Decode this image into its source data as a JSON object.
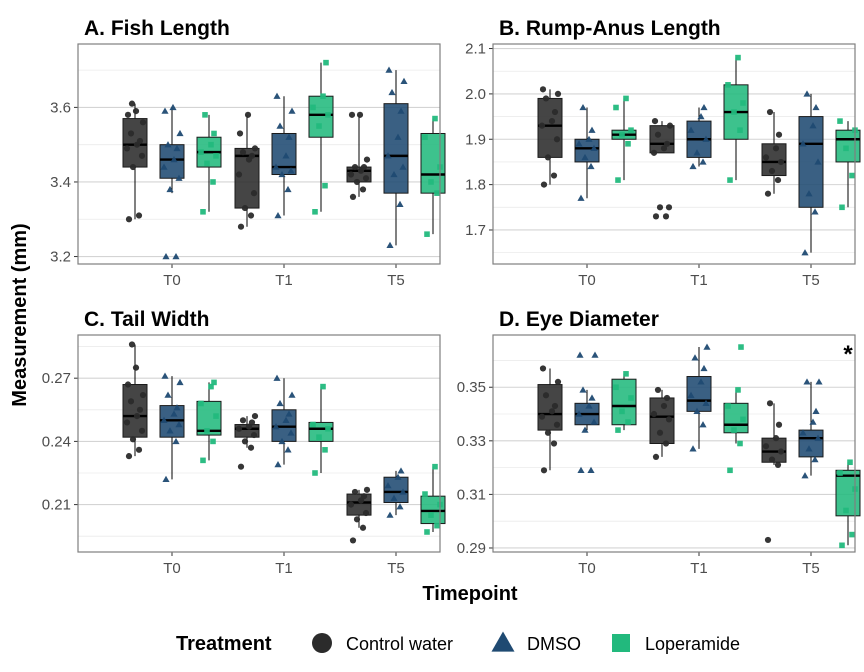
{
  "figure": {
    "ylabel": "Measurement (mm)",
    "xlabel": "Timepoint",
    "legend": {
      "title": "Treatment",
      "placement": "bottom",
      "items": [
        {
          "label": "Control water",
          "shape": "circle",
          "color": "#2b2b2b"
        },
        {
          "label": "DMSO",
          "shape": "triangle",
          "color": "#1f4a72"
        },
        {
          "label": "Loperamide",
          "shape": "square",
          "color": "#22b97d"
        }
      ]
    },
    "colors": {
      "Control water": "#2b2b2b",
      "DMSO": "#1f4a72",
      "Loperamide": "#22b97d",
      "panel_border": "#7f7f7f",
      "grid": "#d4d4d4"
    }
  },
  "chart_data": [
    {
      "type": "box",
      "title": "A. Fish Length",
      "categories": [
        "T0",
        "T1",
        "T5"
      ],
      "ylim": [
        3.18,
        3.77
      ],
      "yticks": [
        3.2,
        3.4,
        3.6
      ],
      "ytick_labels": [
        "3.2",
        "3.4",
        "3.6"
      ],
      "grid": true,
      "annotations": [],
      "series": [
        {
          "name": "Control water",
          "boxes": [
            {
              "min": 3.3,
              "q1": 3.44,
              "median": 3.5,
              "q3": 3.57,
              "max": 3.61,
              "points": [
                3.3,
                3.31,
                3.44,
                3.47,
                3.49,
                3.5,
                3.51,
                3.53,
                3.56,
                3.58,
                3.59,
                3.61
              ]
            },
            {
              "min": 3.28,
              "q1": 3.33,
              "median": 3.47,
              "q3": 3.49,
              "max": 3.58,
              "points": [
                3.28,
                3.31,
                3.33,
                3.37,
                3.42,
                3.46,
                3.47,
                3.48,
                3.49,
                3.53,
                3.58
              ]
            },
            {
              "min": 3.36,
              "q1": 3.4,
              "median": 3.43,
              "q3": 3.44,
              "max": 3.58,
              "points": [
                3.36,
                3.38,
                3.4,
                3.41,
                3.42,
                3.43,
                3.44,
                3.44,
                3.46,
                3.58,
                3.58
              ]
            }
          ]
        },
        {
          "name": "DMSO",
          "boxes": [
            {
              "min": 3.37,
              "q1": 3.41,
              "median": 3.46,
              "q3": 3.5,
              "max": 3.6,
              "points": [
                3.2,
                3.2,
                3.38,
                3.41,
                3.44,
                3.46,
                3.49,
                3.5,
                3.53,
                3.59,
                3.6
              ]
            },
            {
              "min": 3.31,
              "q1": 3.42,
              "median": 3.44,
              "q3": 3.53,
              "max": 3.63,
              "points": [
                3.31,
                3.38,
                3.42,
                3.43,
                3.44,
                3.47,
                3.52,
                3.55,
                3.59,
                3.63
              ]
            },
            {
              "min": 3.23,
              "q1": 3.37,
              "median": 3.47,
              "q3": 3.61,
              "max": 3.7,
              "points": [
                3.23,
                3.34,
                3.42,
                3.44,
                3.47,
                3.52,
                3.59,
                3.64,
                3.67,
                3.7
              ]
            }
          ]
        },
        {
          "name": "Loperamide",
          "boxes": [
            {
              "min": 3.32,
              "q1": 3.44,
              "median": 3.48,
              "q3": 3.52,
              "max": 3.58,
              "points": [
                3.32,
                3.4,
                3.45,
                3.47,
                3.48,
                3.5,
                3.53,
                3.58
              ]
            },
            {
              "min": 3.32,
              "q1": 3.52,
              "median": 3.58,
              "q3": 3.63,
              "max": 3.72,
              "points": [
                3.32,
                3.39,
                3.55,
                3.58,
                3.6,
                3.63,
                3.72
              ]
            },
            {
              "min": 3.26,
              "q1": 3.37,
              "median": 3.42,
              "q3": 3.53,
              "max": 3.57,
              "points": [
                3.26,
                3.37,
                3.4,
                3.44,
                3.52,
                3.57
              ]
            }
          ]
        }
      ]
    },
    {
      "type": "box",
      "title": "B. Rump-Anus Length",
      "categories": [
        "T0",
        "T1",
        "T5"
      ],
      "ylim": [
        1.625,
        2.11
      ],
      "yticks": [
        1.7,
        1.8,
        1.9,
        2.0,
        2.1
      ],
      "ytick_labels": [
        "1.7",
        "1.8",
        "1.9",
        "2.0",
        "2.1"
      ],
      "grid": true,
      "annotations": [],
      "series": [
        {
          "name": "Control water",
          "boxes": [
            {
              "min": 1.8,
              "q1": 1.86,
              "median": 1.93,
              "q3": 1.99,
              "max": 2.01,
              "points": [
                1.8,
                1.82,
                1.86,
                1.9,
                1.93,
                1.94,
                1.96,
                1.99,
                2.0,
                2.01
              ]
            },
            {
              "min": 1.87,
              "q1": 1.87,
              "median": 1.89,
              "q3": 1.93,
              "max": 1.94,
              "points": [
                1.73,
                1.73,
                1.75,
                1.75,
                1.87,
                1.88,
                1.89,
                1.91,
                1.93,
                1.94
              ]
            },
            {
              "min": 1.78,
              "q1": 1.82,
              "median": 1.85,
              "q3": 1.89,
              "max": 1.96,
              "points": [
                1.78,
                1.81,
                1.83,
                1.85,
                1.86,
                1.88,
                1.91,
                1.96
              ]
            }
          ]
        },
        {
          "name": "DMSO",
          "boxes": [
            {
              "min": 1.77,
              "q1": 1.85,
              "median": 1.88,
              "q3": 1.9,
              "max": 1.97,
              "points": [
                1.77,
                1.84,
                1.86,
                1.88,
                1.89,
                1.9,
                1.92,
                1.97
              ]
            },
            {
              "min": 1.84,
              "q1": 1.86,
              "median": 1.9,
              "q3": 1.94,
              "max": 1.97,
              "points": [
                1.84,
                1.85,
                1.87,
                1.9,
                1.92,
                1.95,
                1.97
              ]
            },
            {
              "min": 1.65,
              "q1": 1.75,
              "median": 1.89,
              "q3": 1.95,
              "max": 2.0,
              "points": [
                1.65,
                1.74,
                1.78,
                1.85,
                1.89,
                1.93,
                1.97,
                2.0
              ]
            }
          ]
        },
        {
          "name": "Loperamide",
          "boxes": [
            {
              "min": 1.81,
              "q1": 1.9,
              "median": 1.91,
              "q3": 1.92,
              "max": 1.99,
              "points": [
                1.81,
                1.89,
                1.91,
                1.92,
                1.97,
                1.99
              ]
            },
            {
              "min": 1.81,
              "q1": 1.9,
              "median": 1.96,
              "q3": 2.02,
              "max": 2.08,
              "points": [
                1.81,
                1.92,
                1.96,
                1.98,
                2.02,
                2.08
              ]
            },
            {
              "min": 1.75,
              "q1": 1.85,
              "median": 1.9,
              "q3": 1.92,
              "max": 1.94,
              "points": [
                1.75,
                1.82,
                1.88,
                1.92,
                1.94
              ]
            }
          ]
        }
      ]
    },
    {
      "type": "box",
      "title": "C. Tail Width",
      "categories": [
        "T0",
        "T1",
        "T5"
      ],
      "ylim": [
        0.1875,
        0.2905
      ],
      "yticks": [
        0.21,
        0.24,
        0.27
      ],
      "ytick_labels": [
        "0.21",
        "0.24",
        "0.27"
      ],
      "grid": true,
      "annotations": [],
      "series": [
        {
          "name": "Control water",
          "boxes": [
            {
              "min": 0.233,
              "q1": 0.242,
              "median": 0.252,
              "q3": 0.267,
              "max": 0.286,
              "points": [
                0.233,
                0.236,
                0.241,
                0.245,
                0.249,
                0.252,
                0.255,
                0.259,
                0.262,
                0.267,
                0.275,
                0.286
              ]
            },
            {
              "min": 0.237,
              "q1": 0.242,
              "median": 0.246,
              "q3": 0.248,
              "max": 0.252,
              "points": [
                0.228,
                0.237,
                0.24,
                0.243,
                0.246,
                0.247,
                0.249,
                0.25,
                0.252
              ]
            },
            {
              "min": 0.199,
              "q1": 0.205,
              "median": 0.211,
              "q3": 0.215,
              "max": 0.217,
              "points": [
                0.193,
                0.199,
                0.203,
                0.206,
                0.21,
                0.212,
                0.214,
                0.216,
                0.217
              ]
            }
          ]
        },
        {
          "name": "DMSO",
          "boxes": [
            {
              "min": 0.222,
              "q1": 0.242,
              "median": 0.25,
              "q3": 0.257,
              "max": 0.271,
              "points": [
                0.222,
                0.24,
                0.245,
                0.248,
                0.25,
                0.253,
                0.256,
                0.262,
                0.268,
                0.271
              ]
            },
            {
              "min": 0.229,
              "q1": 0.24,
              "median": 0.247,
              "q3": 0.255,
              "max": 0.27,
              "points": [
                0.229,
                0.236,
                0.24,
                0.244,
                0.247,
                0.25,
                0.253,
                0.258,
                0.262,
                0.27
              ]
            },
            {
              "min": 0.205,
              "q1": 0.211,
              "median": 0.216,
              "q3": 0.223,
              "max": 0.226,
              "points": [
                0.205,
                0.209,
                0.213,
                0.216,
                0.219,
                0.223,
                0.226
              ]
            }
          ]
        },
        {
          "name": "Loperamide",
          "boxes": [
            {
              "min": 0.231,
              "q1": 0.243,
              "median": 0.245,
              "q3": 0.259,
              "max": 0.268,
              "points": [
                0.231,
                0.24,
                0.245,
                0.252,
                0.258,
                0.266,
                0.268
              ]
            },
            {
              "min": 0.225,
              "q1": 0.24,
              "median": 0.246,
              "q3": 0.249,
              "max": 0.266,
              "points": [
                0.225,
                0.236,
                0.242,
                0.246,
                0.248,
                0.266
              ]
            },
            {
              "min": 0.197,
              "q1": 0.201,
              "median": 0.207,
              "q3": 0.214,
              "max": 0.228,
              "points": [
                0.197,
                0.2,
                0.205,
                0.21,
                0.215,
                0.228
              ]
            }
          ]
        }
      ]
    },
    {
      "type": "box",
      "title": "D. Eye Diameter",
      "categories": [
        "T0",
        "T1",
        "T5"
      ],
      "ylim": [
        0.2885,
        0.3695
      ],
      "yticks": [
        0.29,
        0.31,
        0.33,
        0.35
      ],
      "ytick_labels": [
        "0.29",
        "0.31",
        "0.33",
        "0.35"
      ],
      "grid": true,
      "annotations": [
        {
          "text": "*",
          "category": "T5",
          "series": "Loperamide"
        }
      ],
      "series": [
        {
          "name": "Control water",
          "boxes": [
            {
              "min": 0.319,
              "q1": 0.334,
              "median": 0.34,
              "q3": 0.351,
              "max": 0.357,
              "points": [
                0.319,
                0.329,
                0.333,
                0.336,
                0.339,
                0.341,
                0.343,
                0.347,
                0.352,
                0.357
              ]
            },
            {
              "min": 0.324,
              "q1": 0.329,
              "median": 0.339,
              "q3": 0.346,
              "max": 0.349,
              "points": [
                0.324,
                0.329,
                0.333,
                0.338,
                0.34,
                0.343,
                0.346,
                0.349
              ]
            },
            {
              "min": 0.321,
              "q1": 0.322,
              "median": 0.326,
              "q3": 0.331,
              "max": 0.344,
              "points": [
                0.293,
                0.321,
                0.323,
                0.326,
                0.328,
                0.331,
                0.336,
                0.344
              ]
            }
          ]
        },
        {
          "name": "DMSO",
          "boxes": [
            {
              "min": 0.334,
              "q1": 0.336,
              "median": 0.34,
              "q3": 0.344,
              "max": 0.349,
              "points": [
                0.319,
                0.319,
                0.334,
                0.337,
                0.34,
                0.343,
                0.346,
                0.349,
                0.362,
                0.362
              ]
            },
            {
              "min": 0.327,
              "q1": 0.341,
              "median": 0.345,
              "q3": 0.354,
              "max": 0.365,
              "points": [
                0.327,
                0.336,
                0.341,
                0.344,
                0.347,
                0.352,
                0.357,
                0.361,
                0.365
              ]
            },
            {
              "min": 0.317,
              "q1": 0.324,
              "median": 0.331,
              "q3": 0.334,
              "max": 0.352,
              "points": [
                0.317,
                0.323,
                0.327,
                0.331,
                0.333,
                0.337,
                0.341,
                0.352,
                0.352
              ]
            }
          ]
        },
        {
          "name": "Loperamide",
          "boxes": [
            {
              "min": 0.334,
              "q1": 0.336,
              "median": 0.343,
              "q3": 0.353,
              "max": 0.355,
              "points": [
                0.334,
                0.337,
                0.341,
                0.346,
                0.35,
                0.355
              ]
            },
            {
              "min": 0.329,
              "q1": 0.333,
              "median": 0.336,
              "q3": 0.344,
              "max": 0.349,
              "points": [
                0.319,
                0.329,
                0.334,
                0.338,
                0.343,
                0.349,
                0.365
              ]
            },
            {
              "min": 0.291,
              "q1": 0.302,
              "median": 0.317,
              "q3": 0.319,
              "max": 0.322,
              "points": [
                0.291,
                0.295,
                0.304,
                0.312,
                0.318,
                0.322
              ]
            }
          ]
        }
      ]
    }
  ]
}
